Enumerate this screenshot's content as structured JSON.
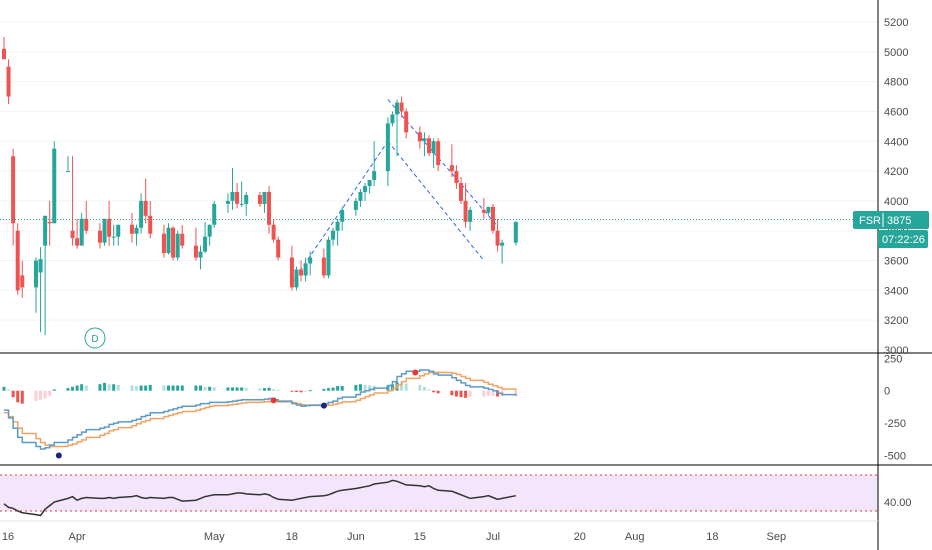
{
  "colors": {
    "bull": "#26a69a",
    "bear": "#ef5350",
    "price_line": "#26a69a",
    "trend": "#2962ff",
    "macd_line": "#5b9bc8",
    "signal_line": "#f4a261",
    "rsi_line": "#333333",
    "rsi_band": "#f3e5fb",
    "rsi_level": "#e53935",
    "grid": "#f0f3fa",
    "axis_text": "#4a4a4a"
  },
  "price_axis": {
    "ticks": [
      3000,
      3200,
      3400,
      3600,
      3800,
      4000,
      4200,
      4400,
      4600,
      4800,
      5000,
      5200
    ]
  },
  "macd_axis": {
    "ticks": [
      250,
      0,
      -250,
      -500
    ]
  },
  "rsi_axis": {
    "ticks": [
      40.0
    ]
  },
  "date_axis": {
    "labels": [
      "16",
      "Apr",
      "May",
      "18",
      "Jun",
      "15",
      "Jul",
      "20",
      "Aug",
      "18",
      "Sep"
    ]
  },
  "symbol_tag": {
    "symbol": "FSR",
    "price": "3875",
    "timer": "07:22:26"
  },
  "dividend_marker": "D",
  "chart_data": {
    "type": "candlestick",
    "symbol": "FSR",
    "last_price": 3875,
    "price_ylim": [
      3000,
      5200
    ],
    "candles": [
      [
        5020,
        5100,
        4950,
        4950
      ],
      [
        4900,
        4950,
        4650,
        4700
      ],
      [
        4300,
        4350,
        3700,
        3850
      ],
      [
        3800,
        3850,
        3370,
        3400
      ],
      [
        3500,
        3600,
        3350,
        3420
      ],
      [
        3420,
        3620,
        3250,
        3600
      ],
      [
        3520,
        3690,
        3120,
        3610
      ],
      [
        3700,
        3900,
        3100,
        3900
      ],
      [
        3860,
        4000,
        3700,
        3850
      ],
      [
        3850,
        4400,
        3850,
        4350
      ],
      [
        4200,
        4300,
        4200,
        4200
      ],
      [
        3800,
        4300,
        3700,
        3750
      ],
      [
        3750,
        3880,
        3680,
        3700
      ],
      [
        3700,
        3920,
        3700,
        3880
      ],
      [
        3880,
        4000,
        3780,
        3800
      ],
      [
        3800,
        3850,
        3680,
        3720
      ],
      [
        3720,
        3880,
        3700,
        3880
      ],
      [
        3880,
        4000,
        3700,
        3760
      ],
      [
        3760,
        3840,
        3700,
        3760
      ],
      [
        3760,
        3840,
        3700,
        3840
      ],
      [
        3840,
        3920,
        3720,
        3780
      ],
      [
        3780,
        3840,
        3700,
        3820
      ],
      [
        3820,
        4050,
        3780,
        4000
      ],
      [
        4000,
        4150,
        3850,
        3900
      ],
      [
        3900,
        4000,
        3750,
        3780
      ],
      [
        3780,
        3840,
        3620,
        3650
      ],
      [
        3650,
        3850,
        3640,
        3820
      ],
      [
        3820,
        3830,
        3600,
        3620
      ],
      [
        3620,
        3800,
        3600,
        3780
      ],
      [
        3780,
        3840,
        3680,
        3700
      ],
      [
        3700,
        3820,
        3600,
        3620
      ],
      [
        3620,
        3700,
        3540,
        3660
      ],
      [
        3660,
        3860,
        3650,
        3760
      ],
      [
        3760,
        3840,
        3700,
        3840
      ],
      [
        3840,
        4000,
        3820,
        3980
      ],
      [
        3980,
        4050,
        3920,
        4000
      ],
      [
        4000,
        4220,
        3940,
        4060
      ],
      [
        4060,
        4120,
        3950,
        3980
      ],
      [
        3980,
        4130,
        3960,
        3980
      ],
      [
        3980,
        4060,
        3900,
        4040
      ],
      [
        4040,
        4060,
        3960,
        3980
      ],
      [
        3980,
        4060,
        3920,
        4060
      ],
      [
        4060,
        4100,
        3780,
        3840
      ],
      [
        3840,
        3880,
        3720,
        3740
      ],
      [
        3740,
        3760,
        3600,
        3620
      ],
      [
        3620,
        3700,
        3400,
        3420
      ],
      [
        3420,
        3560,
        3400,
        3540
      ],
      [
        3540,
        3600,
        3460,
        3500
      ],
      [
        3500,
        3620,
        3460,
        3580
      ],
      [
        3580,
        3660,
        3500,
        3620
      ],
      [
        3620,
        3680,
        3480,
        3500
      ],
      [
        3500,
        3760,
        3480,
        3740
      ],
      [
        3740,
        3820,
        3700,
        3800
      ],
      [
        3800,
        3880,
        3700,
        3860
      ],
      [
        3860,
        3960,
        3800,
        3940
      ],
      [
        3940,
        4020,
        3900,
        4000
      ],
      [
        4000,
        4080,
        3960,
        4060
      ],
      [
        4060,
        4120,
        4000,
        4100
      ],
      [
        4100,
        4140,
        4050,
        4140
      ],
      [
        4140,
        4400,
        4100,
        4200
      ],
      [
        4200,
        4560,
        4100,
        4520
      ],
      [
        4520,
        4600,
        4500,
        4580
      ],
      [
        4580,
        4680,
        4300,
        4660
      ],
      [
        4660,
        4700,
        4560,
        4600
      ],
      [
        4600,
        4620,
        4420,
        4460
      ],
      [
        4460,
        4500,
        4350,
        4400
      ],
      [
        4400,
        4460,
        4300,
        4420
      ],
      [
        4420,
        4440,
        4300,
        4320
      ],
      [
        4320,
        4420,
        4220,
        4400
      ],
      [
        4400,
        4420,
        4200,
        4240
      ],
      [
        4240,
        4380,
        4160,
        4200
      ],
      [
        4200,
        4240,
        4080,
        4120
      ],
      [
        4120,
        4160,
        3980,
        4000
      ],
      [
        4000,
        4120,
        3820,
        3860
      ],
      [
        3860,
        3960,
        3800,
        3940
      ],
      [
        3940,
        4020,
        3880,
        3920
      ],
      [
        3920,
        3960,
        3900,
        3960
      ],
      [
        3960,
        3980,
        3780,
        3800
      ],
      [
        3800,
        3880,
        3660,
        3700
      ],
      [
        3700,
        3740,
        3580,
        3720
      ],
      [
        3720,
        3860,
        3700,
        3860
      ]
    ],
    "trend_lines": [
      {
        "from": {
          "date": "May 18",
          "price": 3450
        },
        "to": {
          "date": "Jun 8",
          "price": 4400
        }
      },
      {
        "from": {
          "date": "Jun 8",
          "price": 4400
        },
        "to": {
          "date": "Jun 29",
          "price": 3600
        }
      },
      {
        "from": {
          "date": "Jun 8",
          "price": 4680
        },
        "to": {
          "date": "Jul 2",
          "price": 3830
        }
      }
    ],
    "macd": {
      "ylim": [
        -550,
        260
      ],
      "macd_line": [
        -150,
        -210,
        -290,
        -360,
        -400,
        -430,
        -450,
        -440,
        -420,
        -400,
        -380,
        -360,
        -340,
        -320,
        -300,
        -290,
        -280,
        -260,
        -250,
        -240,
        -230,
        -220,
        -200,
        -190,
        -170,
        -160,
        -150,
        -140,
        -130,
        -120,
        -110,
        -100,
        -100,
        -90,
        -90,
        -85,
        -80,
        -75,
        -70,
        -70,
        -70,
        -65,
        -60,
        -70,
        -80,
        -100,
        -110,
        -120,
        -115,
        -110,
        -100,
        -90,
        -80,
        -60,
        -50,
        -30,
        -10,
        0,
        10,
        20,
        40,
        70,
        110,
        130,
        150,
        160,
        160,
        150,
        130,
        120,
        100,
        80,
        60,
        40,
        30,
        20,
        10,
        0,
        -20,
        -30,
        -40
      ],
      "signal_line": [
        -170,
        -200,
        -240,
        -290,
        -330,
        -370,
        -400,
        -420,
        -430,
        -430,
        -420,
        -410,
        -395,
        -380,
        -360,
        -345,
        -330,
        -310,
        -300,
        -285,
        -270,
        -255,
        -240,
        -230,
        -215,
        -200,
        -190,
        -180,
        -170,
        -160,
        -150,
        -140,
        -130,
        -120,
        -115,
        -110,
        -105,
        -100,
        -95,
        -90,
        -88,
        -85,
        -83,
        -83,
        -86,
        -92,
        -100,
        -108,
        -112,
        -114,
        -114,
        -110,
        -104,
        -96,
        -86,
        -74,
        -60,
        -46,
        -32,
        -18,
        0,
        20,
        45,
        70,
        95,
        115,
        130,
        140,
        142,
        140,
        135,
        125,
        110,
        95,
        80,
        65,
        50,
        38,
        25,
        12,
        0
      ],
      "histogram": [
        30,
        10,
        -50,
        -90,
        -100,
        -80,
        -70,
        -60,
        -40,
        10,
        20,
        30,
        40,
        50,
        40,
        50,
        60,
        50,
        50,
        45,
        40,
        35,
        40,
        40,
        45,
        40,
        40,
        40,
        40,
        40,
        40,
        40,
        30,
        30,
        25,
        25,
        25,
        25,
        25,
        20,
        18,
        20,
        23,
        13,
        6,
        -8,
        -10,
        -12,
        -3,
        4,
        14,
        20,
        24,
        36,
        36,
        44,
        50,
        46,
        42,
        38,
        40,
        50,
        65,
        60,
        55,
        45,
        30,
        10,
        -12,
        -20,
        -35,
        -45,
        -50,
        -55,
        -50,
        -45,
        -40,
        -38,
        -45,
        -42,
        -40
      ],
      "cross_markers": [
        {
          "date": "Mar 28",
          "value": -500,
          "kind": "bullish"
        },
        {
          "date": "May 14",
          "value": -75,
          "kind": "bearish"
        },
        {
          "date": "May 25",
          "value": -115,
          "kind": "bullish"
        },
        {
          "date": "Jun 14",
          "value": 140,
          "kind": "bearish"
        }
      ]
    },
    "rsi": {
      "band": [
        30,
        70
      ],
      "levels": [
        30,
        70
      ],
      "ylim": [
        20,
        80
      ],
      "values": [
        38,
        34,
        33,
        30,
        28,
        26,
        25,
        32,
        36,
        40,
        44,
        46,
        42,
        44,
        45,
        44,
        44,
        45,
        44,
        45,
        46,
        47,
        45,
        44,
        45,
        44,
        45,
        45,
        43,
        41,
        42,
        44,
        46,
        47,
        48,
        48,
        49,
        50,
        50,
        49,
        48,
        49,
        48,
        45,
        43,
        42,
        43,
        44,
        45,
        46,
        47,
        48,
        50,
        52,
        53,
        55,
        56,
        57,
        58,
        60,
        62,
        64,
        63,
        61,
        59,
        58,
        57,
        58,
        55,
        53,
        52,
        50,
        48,
        46,
        44,
        46,
        47,
        45,
        43,
        44,
        47
      ]
    }
  }
}
